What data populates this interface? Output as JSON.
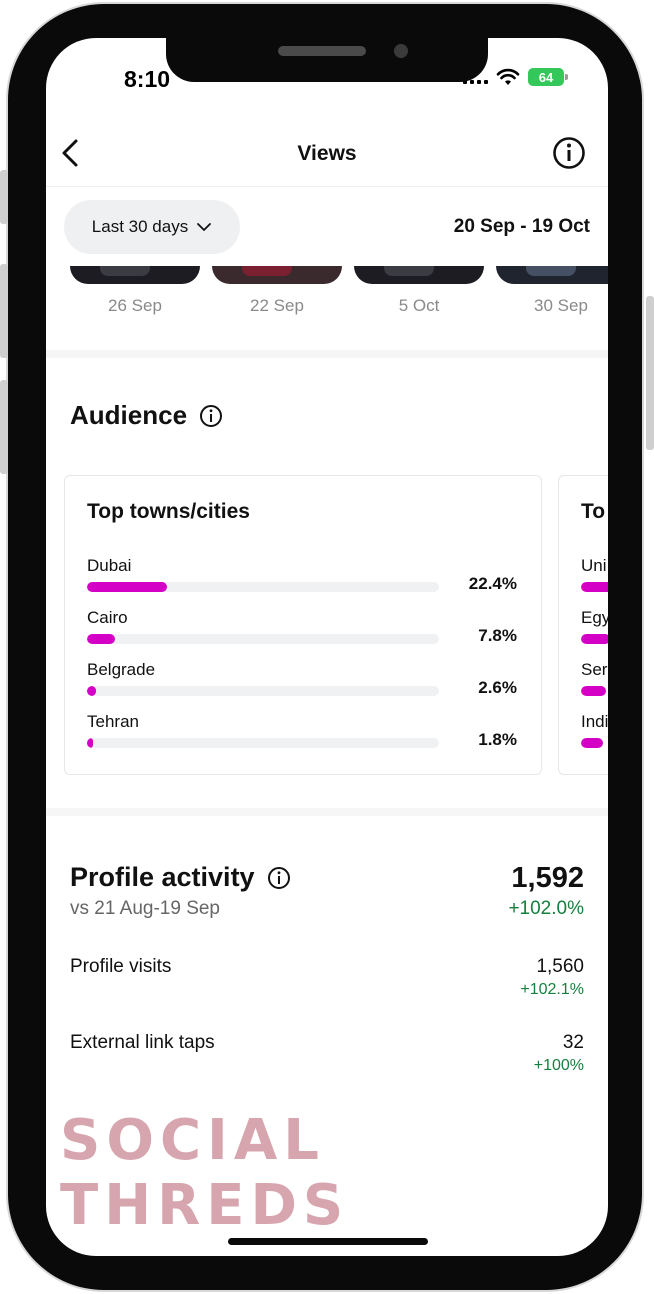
{
  "status_bar": {
    "time": "8:10",
    "battery": "64"
  },
  "header": {
    "title": "Views"
  },
  "filter": {
    "period_label": "Last 30 days",
    "date_range": "20 Sep - 19 Oct"
  },
  "recent_posts": [
    {
      "date": "26 Sep"
    },
    {
      "date": "22 Sep"
    },
    {
      "date": "5 Oct"
    },
    {
      "date": "30 Sep"
    }
  ],
  "audience": {
    "title": "Audience",
    "top_cities": {
      "title": "Top towns/cities",
      "rows": [
        {
          "name": "Dubai",
          "percent_label": "22.4%",
          "value": 22.4
        },
        {
          "name": "Cairo",
          "percent_label": "7.8%",
          "value": 7.8
        },
        {
          "name": "Belgrade",
          "percent_label": "2.6%",
          "value": 2.6
        },
        {
          "name": "Tehran",
          "percent_label": "1.8%",
          "value": 1.8
        }
      ]
    },
    "top_countries": {
      "title_partial": "To",
      "rows": [
        {
          "name_partial": "Uni",
          "value": 22.0
        },
        {
          "name_partial": "Egy",
          "value": 8.0
        },
        {
          "name_partial": "Ser",
          "value": 7.0
        },
        {
          "name_partial": "Indi",
          "value": 6.0
        }
      ]
    }
  },
  "profile_activity": {
    "title": "Profile activity",
    "comparison": "vs 21 Aug-19 Sep",
    "total": "1,592",
    "total_change": "+102.0%",
    "metrics": [
      {
        "label": "Profile visits",
        "value": "1,560",
        "change": "+102.1%"
      },
      {
        "label": "External link taps",
        "value": "32",
        "change": "+100%"
      }
    ]
  },
  "watermark": "SOCIAL THREDS",
  "colors": {
    "bar_fill": "#d400c6",
    "positive": "#15803d",
    "watermark": "#d7a5ae",
    "battery": "#34c759"
  }
}
